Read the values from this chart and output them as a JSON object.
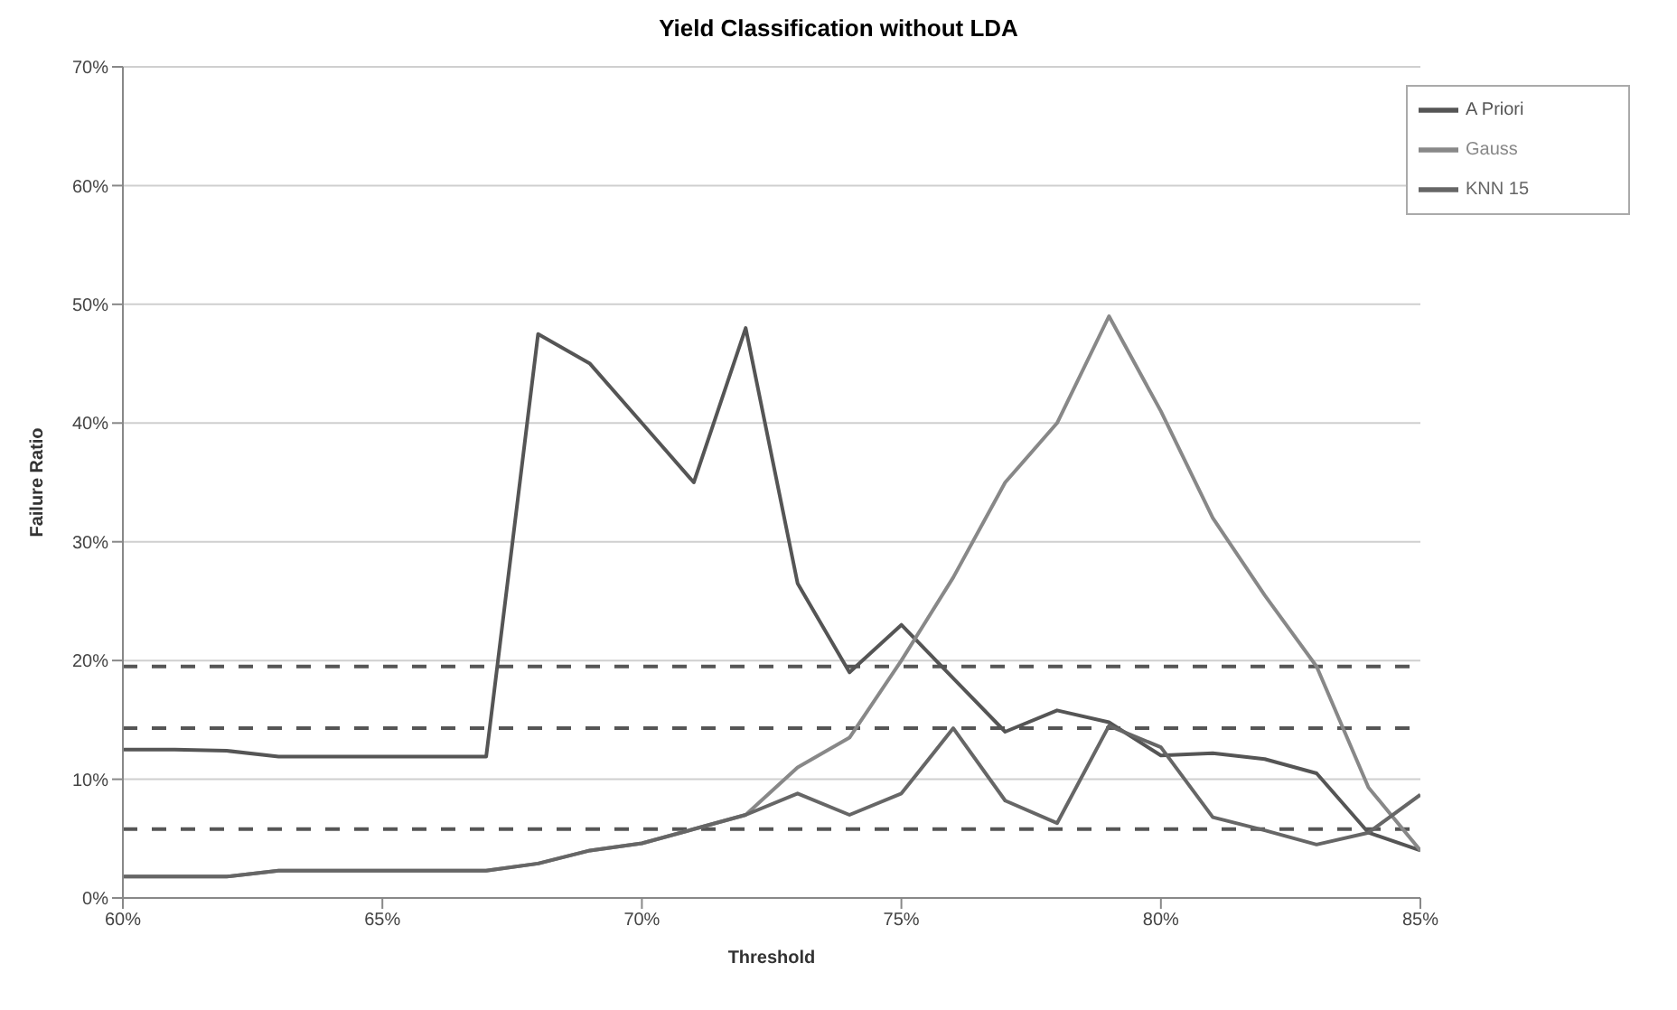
{
  "chart_data": {
    "type": "line",
    "title": "Yield Classification without LDA",
    "xlabel": "Threshold",
    "ylabel": "Failure Ratio",
    "x": [
      60,
      61,
      62,
      63,
      64,
      65,
      66,
      67,
      68,
      69,
      70,
      71,
      72,
      73,
      74,
      75,
      76,
      77,
      78,
      79,
      80,
      81,
      82,
      83,
      84,
      85
    ],
    "series": [
      {
        "name": "A Priori",
        "color": "#555555",
        "values": [
          12.5,
          12.5,
          12.4,
          11.9,
          11.9,
          11.9,
          11.9,
          11.9,
          47.5,
          45,
          40,
          35,
          48,
          26.5,
          19,
          23,
          18.5,
          14,
          15.8,
          14.8,
          12,
          12.2,
          11.7,
          10.5,
          5.5,
          4
        ]
      },
      {
        "name": "Gauss",
        "color": "#888888",
        "values": [
          1.8,
          1.8,
          1.8,
          2.3,
          2.3,
          2.3,
          2.3,
          2.3,
          2.9,
          4,
          4.6,
          5.8,
          7,
          11,
          13.5,
          20,
          27,
          35,
          40,
          49,
          41,
          32,
          25.5,
          19.5,
          9.3,
          4
        ]
      },
      {
        "name": "KNN 15",
        "color": "#666666",
        "values": [
          1.8,
          1.8,
          1.8,
          2.3,
          2.3,
          2.3,
          2.3,
          2.3,
          2.9,
          4,
          4.6,
          5.8,
          7,
          8.8,
          7,
          8.8,
          14.3,
          8.2,
          6.3,
          14.5,
          12.7,
          6.8,
          5.7,
          4.5,
          5.5,
          8.7
        ]
      }
    ],
    "xlim": [
      60,
      85
    ],
    "xticks": [
      {
        "value": 60,
        "label": "60%"
      },
      {
        "value": 65,
        "label": "65%"
      },
      {
        "value": 70,
        "label": "70%"
      },
      {
        "value": 75,
        "label": "75%"
      },
      {
        "value": 80,
        "label": "80%"
      },
      {
        "value": 85,
        "label": "85%"
      }
    ],
    "ylim": [
      0,
      70
    ],
    "yticks": [
      {
        "value": 0,
        "label": "0%"
      },
      {
        "value": 10,
        "label": "10%"
      },
      {
        "value": 20,
        "label": "20%"
      },
      {
        "value": 30,
        "label": "30%"
      },
      {
        "value": 40,
        "label": "40%"
      },
      {
        "value": 50,
        "label": "50%"
      },
      {
        "value": 60,
        "label": "60%"
      },
      {
        "value": 70,
        "label": "70%"
      }
    ],
    "ref_lines": [
      {
        "axis": "y",
        "value": 19.5,
        "color": "#555555",
        "line_style": "dashed"
      },
      {
        "axis": "y",
        "value": 14.3,
        "color": "#555555",
        "line_style": "dashed"
      },
      {
        "axis": "y",
        "value": 5.8,
        "color": "#555555",
        "line_style": "dashed"
      }
    ],
    "grid": "y",
    "legend": "top right",
    "marker": "none",
    "line_style": "solid"
  }
}
